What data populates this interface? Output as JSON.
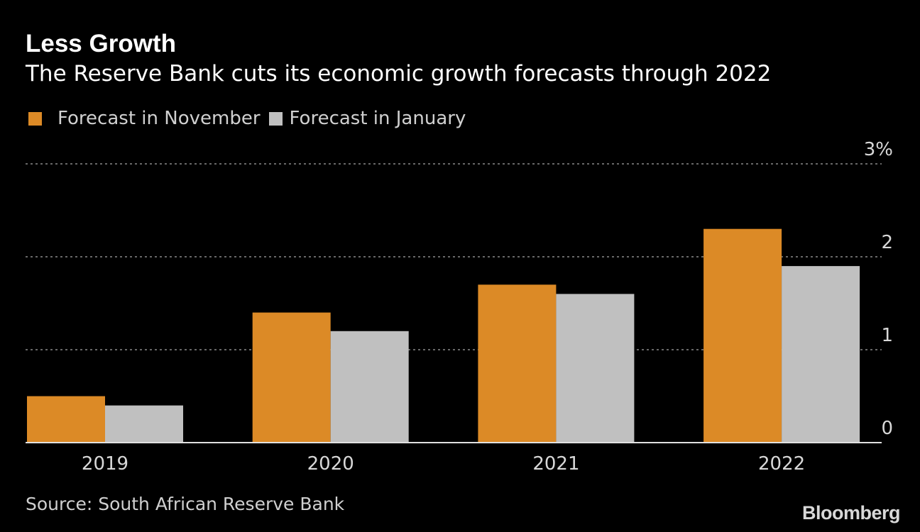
{
  "title": "Less Growth",
  "subtitle": "The Reserve Bank cuts its economic growth forecasts through 2022",
  "source": "Source: South African Reserve Bank",
  "logo": "Bloomberg",
  "chart_data": {
    "type": "bar",
    "title": "Less Growth",
    "subtitle": "The Reserve Bank cuts its economic growth forecasts through 2022",
    "categories": [
      "2019",
      "2020",
      "2021",
      "2022"
    ],
    "series": [
      {
        "name": "Forecast in November",
        "color": "#dc8a26",
        "values": [
          0.5,
          1.4,
          1.7,
          2.3
        ]
      },
      {
        "name": "Forecast in January",
        "color": "#c0c0c0",
        "values": [
          0.4,
          1.2,
          1.6,
          1.9
        ]
      }
    ],
    "yticks": [
      "0",
      "1",
      "2",
      "3%"
    ],
    "ylim": [
      0,
      3
    ],
    "grid": true,
    "yaxis_position": "right",
    "legend_position": "top-left"
  }
}
